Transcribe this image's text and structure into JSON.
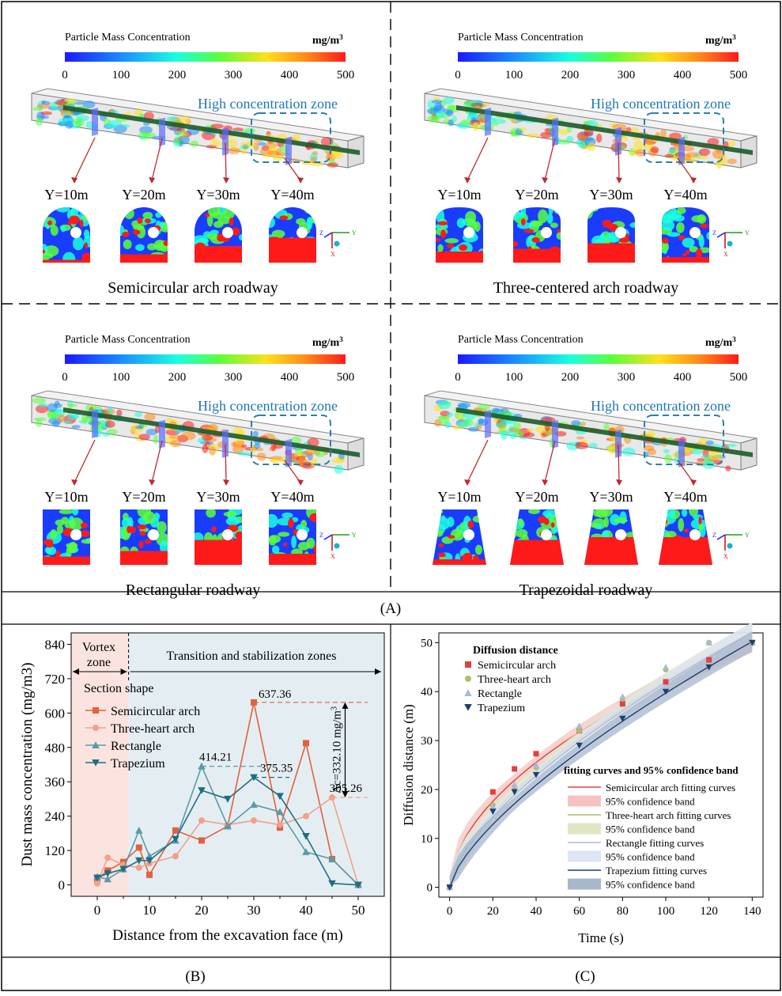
{
  "panel_a": {
    "label": "(A)",
    "legend_title": "Particle Mass Concentration",
    "legend_unit": "mg/m",
    "legend_unit_sup": "3",
    "legend_ticks": [
      "0",
      "100",
      "200",
      "300",
      "400",
      "500"
    ],
    "zone_label": "High concentration zone",
    "section_labels": [
      "Y=10m",
      "Y=20m",
      "Y=30m",
      "Y=40m"
    ],
    "axis_labels": [
      "Y",
      "Z",
      "X"
    ],
    "roadways": [
      {
        "title": "Semicircular arch roadway",
        "shape": "arch"
      },
      {
        "title": "Three-centered arch roadway",
        "shape": "three"
      },
      {
        "title": "Rectangular roadway",
        "shape": "rect"
      },
      {
        "title": "Trapezoidal roadway",
        "shape": "trap"
      }
    ],
    "section_red_fill": [
      [
        0.05,
        0.15,
        0.3,
        0.45
      ],
      [
        0.2,
        0.25,
        0.35,
        0.1
      ],
      [
        0.15,
        0.25,
        0.45,
        0.2
      ],
      [
        0.1,
        0.45,
        0.5,
        0.5
      ]
    ]
  },
  "panel_b": {
    "label": "(B)",
    "vortex_label_1": "Vortex",
    "vortex_label_2": "zone",
    "transition_label": "Transition and stabilization zones",
    "legend_title": "Section shape",
    "delta_label": "Δc=332.10 mg/m",
    "delta_sup": "3",
    "annotations": [
      "637.36",
      "414.21",
      "375.35",
      "305.26"
    ],
    "colors": {
      "semicircular": "#e0623f",
      "three_heart": "#f2a08a",
      "rectangle": "#5a9aa8",
      "trapezium": "#1f6e80",
      "vortex_bg": "#fbe4e0",
      "transition_bg": "#e4eef2"
    }
  },
  "panel_c": {
    "label": "(C)",
    "scatter_legend_title": "Diffusion distance",
    "fit_legend_title": "fitting curves and 95% confidence band",
    "fit_entries": [
      "Semicircular arch fitting curves",
      "95% confidence band",
      "Three-heart arch fitting curves",
      "95% confidence band",
      "Rectangle fitting curves",
      "95% confidence band",
      "Trapezium fitting curves",
      "95% confidence band"
    ],
    "colors": {
      "semicircular": "#e0413f",
      "three_heart": "#a9bf6a",
      "rectangle": "#a9b9dd",
      "trapezium": "#1f3f6e",
      "semi_band": "#f6c4c0",
      "three_band": "#dfe7c3",
      "rect_band": "#dde4f4",
      "trap_band": "#a7b7cc"
    }
  },
  "chart_data": [
    {
      "type": "line",
      "title": "",
      "xlabel": "Distance from the excavation face (m)",
      "ylabel": "Dust mass concentration (mg/m3)",
      "xlim": [
        -5,
        55
      ],
      "ylim": [
        -40,
        880
      ],
      "xticks": [
        0,
        10,
        20,
        30,
        40,
        50
      ],
      "yticks": [
        0,
        120,
        240,
        360,
        480,
        600,
        720,
        840
      ],
      "series": [
        {
          "name": "Semicircular arch",
          "marker": "square",
          "x": [
            0,
            2,
            5,
            8,
            10,
            15,
            20,
            25,
            30,
            35,
            40,
            45,
            50
          ],
          "y": [
            20,
            50,
            80,
            130,
            35,
            190,
            155,
            205,
            637.36,
            200,
            495,
            90,
            0
          ]
        },
        {
          "name": "Three-heart arch",
          "marker": "circle",
          "x": [
            0,
            2,
            5,
            8,
            10,
            15,
            20,
            25,
            30,
            35,
            40,
            45,
            50
          ],
          "y": [
            5,
            95,
            70,
            60,
            75,
            100,
            225,
            210,
            225,
            210,
            240,
            305.26,
            0
          ]
        },
        {
          "name": "Rectangle",
          "marker": "triangle-up",
          "x": [
            0,
            2,
            5,
            8,
            10,
            15,
            20,
            25,
            30,
            35,
            40,
            45,
            50
          ],
          "y": [
            28,
            20,
            55,
            190,
            100,
            155,
            414.21,
            205,
            280,
            255,
            115,
            90,
            0
          ]
        },
        {
          "name": "Trapezium",
          "marker": "triangle-down",
          "x": [
            0,
            2,
            5,
            8,
            10,
            15,
            20,
            25,
            30,
            35,
            40,
            45,
            50
          ],
          "y": [
            25,
            40,
            55,
            85,
            85,
            160,
            330,
            300,
            375.35,
            310,
            170,
            5,
            0
          ]
        }
      ]
    },
    {
      "type": "scatter",
      "title": "",
      "xlabel": "Time (s)",
      "ylabel": "Diffusion distance (m)",
      "xlim": [
        -5,
        145
      ],
      "ylim": [
        -2,
        52
      ],
      "xticks": [
        0,
        20,
        40,
        60,
        80,
        100,
        120,
        140
      ],
      "yticks": [
        0,
        10,
        20,
        30,
        40,
        50
      ],
      "series": [
        {
          "name": "Semicircular arch",
          "marker": "square",
          "x": [
            0,
            20,
            30,
            40,
            60,
            80,
            100,
            120,
            140
          ],
          "y": [
            0,
            19.5,
            24.2,
            27.3,
            32.0,
            37.5,
            42.0,
            46.5,
            50.0
          ],
          "fit_a": 3.52,
          "fit_b": 0.537
        },
        {
          "name": "Three-heart arch",
          "marker": "circle",
          "x": [
            0,
            20,
            30,
            40,
            60,
            80,
            100,
            120,
            140
          ],
          "y": [
            0,
            16.8,
            20.0,
            24.5,
            32.0,
            38.5,
            44.5,
            50.0,
            50.0
          ],
          "fit_a": 2.25,
          "fit_b": 0.636
        },
        {
          "name": "Rectangle",
          "marker": "triangle-up",
          "x": [
            0,
            20,
            30,
            40,
            60,
            80,
            100,
            120,
            140
          ],
          "y": [
            0,
            16.5,
            21.0,
            25.0,
            33.0,
            39.0,
            45.0,
            50.0,
            50.0
          ],
          "fit_a": 2.0,
          "fit_b": 0.66
        },
        {
          "name": "Trapezium",
          "marker": "triangle-down",
          "x": [
            0,
            20,
            30,
            40,
            60,
            80,
            100,
            120,
            140
          ],
          "y": [
            0,
            15.5,
            19.5,
            23.0,
            29.0,
            34.5,
            40.0,
            45.0,
            50.0
          ],
          "fit_a": 1.58,
          "fit_b": 0.7
        }
      ]
    }
  ]
}
